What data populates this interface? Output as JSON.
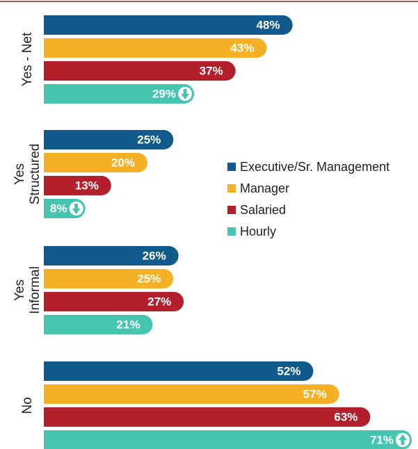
{
  "chart_data": {
    "type": "hbar",
    "categories": [
      [
        "Yes - Net"
      ],
      [
        "Yes",
        "Structured"
      ],
      [
        "Yes",
        "Informal"
      ],
      [
        "No"
      ]
    ],
    "series": [
      {
        "name": "Executive/Sr. Management",
        "color": "#115a8c",
        "values": [
          48,
          25,
          26,
          52
        ],
        "value_labels": [
          "48%",
          "25%",
          "26%",
          "52%"
        ]
      },
      {
        "name": "Manager",
        "color": "#f6b026",
        "values": [
          43,
          20,
          25,
          57
        ],
        "value_labels": [
          "43%",
          "20%",
          "25%",
          "57%"
        ]
      },
      {
        "name": "Salaried",
        "color": "#b3202b",
        "values": [
          37,
          13,
          27,
          63
        ],
        "value_labels": [
          "37%",
          "13%",
          "27%",
          "63%"
        ]
      },
      {
        "name": "Hourly",
        "color": "#45c4b0",
        "values": [
          29,
          8,
          21,
          71
        ],
        "value_labels": [
          "29%",
          "8%",
          "21%",
          "71%"
        ],
        "markers": [
          "down",
          "down",
          null,
          "up"
        ]
      }
    ],
    "legend": "right"
  }
}
